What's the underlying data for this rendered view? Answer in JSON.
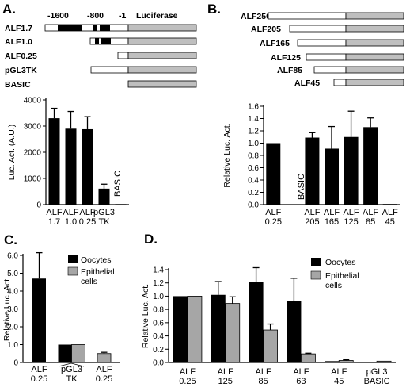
{
  "chart_data": [
    {
      "id": "A",
      "title": "A.",
      "type": "bar",
      "ylabel": "Luc. Act. (A.U.)",
      "ylim": [
        0,
        4000
      ],
      "yticks": [
        "0",
        "1000",
        "2000",
        "3000",
        "4000"
      ],
      "categories": [
        [
          "ALF",
          "1.7"
        ],
        [
          "ALF",
          "1.0"
        ],
        [
          "ALF",
          "0.25"
        ],
        [
          "pGL3",
          "TK"
        ],
        [
          ""
        ]
      ],
      "values": [
        3300,
        2900,
        2880,
        610,
        20
      ],
      "errors": [
        380,
        660,
        480,
        170,
        0
      ],
      "bar_color": "#000000",
      "annotation": "BASIC",
      "constructs": {
        "scale_labels": [
          "-1600",
          "-800",
          "-1",
          "Luciferase"
        ],
        "items": [
          "ALF1.7",
          "ALF1.0",
          "ALF0.25",
          "pGL3TK",
          "BASIC"
        ]
      }
    },
    {
      "id": "B",
      "title": "B.",
      "type": "bar",
      "ylabel": "Relative Luc. Act.",
      "ylim": [
        0,
        1.6
      ],
      "yticks": [
        "0.0",
        "0.2",
        "0.4",
        "0.6",
        "0.8",
        "1.0",
        "1.2",
        "1.4",
        "1.6"
      ],
      "categories": [
        [
          "ALF",
          "0.25"
        ],
        [
          ""
        ],
        [
          "ALF",
          "205"
        ],
        [
          "ALF",
          "165"
        ],
        [
          "ALF",
          "125"
        ],
        [
          "ALF",
          "85"
        ],
        [
          "ALF",
          "45"
        ]
      ],
      "values": [
        1.0,
        0.0,
        1.09,
        0.91,
        1.1,
        1.26,
        0.01
      ],
      "errors": [
        0,
        0,
        0.08,
        0.36,
        0.42,
        0.15,
        0
      ],
      "bar_color": "#000000",
      "annotation": "BASIC",
      "constructs": {
        "items": [
          "ALF250",
          "ALF205",
          "ALF165",
          "ALF125",
          "ALF85",
          "ALF45"
        ]
      }
    },
    {
      "id": "C",
      "title": "C.",
      "type": "bar",
      "ylabel": "Relative Luc. Act.",
      "ylim": [
        0,
        6
      ],
      "yticks": [
        "0",
        "1.0",
        "2.0",
        "3.0",
        "4.0",
        "5.0",
        "6.0"
      ],
      "categories": [
        [
          "ALF",
          "0.25"
        ],
        [
          "pGL3",
          "TK"
        ],
        [
          "ALF",
          "0.25"
        ]
      ],
      "series": [
        {
          "name": "Oocytes",
          "color": "#000000",
          "values": [
            4.7,
            1.0,
            null
          ],
          "errors": [
            1.45,
            0,
            0
          ]
        },
        {
          "name": "Epithelial cells",
          "color": "#a6a6a6",
          "values": [
            null,
            1.0,
            0.5
          ],
          "errors": [
            0,
            0,
            0.07
          ]
        }
      ],
      "legend": [
        {
          "label": "Oocytes",
          "color": "#000000"
        },
        {
          "label": "Epithelial",
          "color": "#a6a6a6"
        },
        {
          "label": "cells",
          "color": ""
        }
      ]
    },
    {
      "id": "D",
      "title": "D.",
      "type": "bar",
      "ylabel": "Relative Luc. Act.",
      "ylim": [
        0,
        1.4
      ],
      "yticks": [
        "0.0",
        "0.2",
        "0.4",
        "0.6",
        "0.8",
        "1.0",
        "1.2",
        "1.4"
      ],
      "categories": [
        [
          "ALF",
          "0.25"
        ],
        [
          "ALF",
          "125"
        ],
        [
          "ALF",
          "85"
        ],
        [
          "ALF",
          "63"
        ],
        [
          "ALF",
          "45"
        ],
        [
          "pGL3",
          "BASIC"
        ]
      ],
      "series": [
        {
          "name": "Oocytes",
          "color": "#000000",
          "values": [
            1.0,
            1.02,
            1.22,
            0.93,
            0.02,
            0.01
          ],
          "errors": [
            0,
            0.2,
            0.21,
            0.34,
            0,
            0
          ]
        },
        {
          "name": "Epithelial cells",
          "color": "#a6a6a6",
          "values": [
            1.0,
            0.89,
            0.49,
            0.13,
            0.03,
            0.02
          ],
          "errors": [
            0,
            0.1,
            0.09,
            0.01,
            0.01,
            0
          ]
        }
      ],
      "legend": [
        {
          "label": "Oocytes",
          "color": "#000000"
        },
        {
          "label": "Epithelial",
          "color": "#a6a6a6"
        },
        {
          "label": "cells",
          "color": ""
        }
      ]
    }
  ]
}
